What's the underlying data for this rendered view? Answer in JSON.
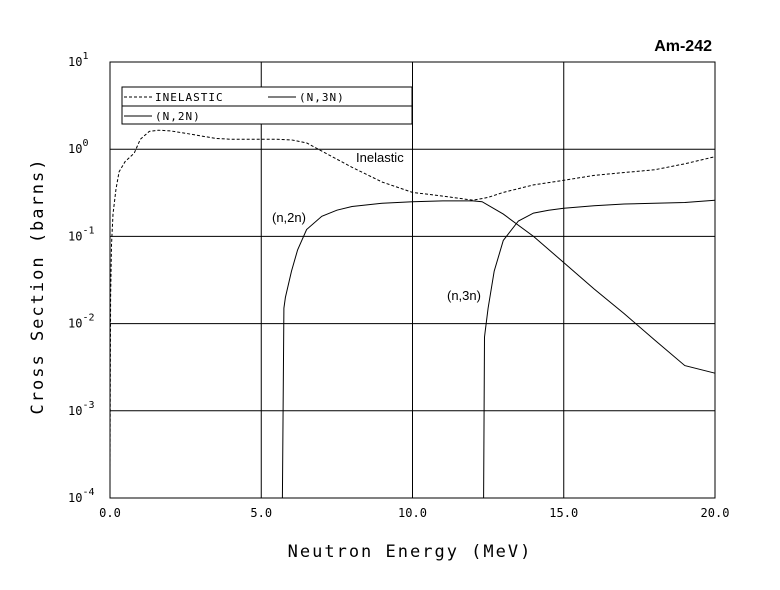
{
  "chart_data": {
    "type": "line",
    "title": "Am-242",
    "xlabel": "Neutron Energy (MeV)",
    "ylabel": "Cross Section (barns)",
    "xlim": [
      0,
      20
    ],
    "ylim": [
      0.0001,
      10
    ],
    "yscale": "log",
    "grid": true,
    "legend_position": "top-left",
    "x_ticks": [
      "0.0",
      "5.0",
      "10.0",
      "15.0",
      "20.0"
    ],
    "y_ticks": [
      {
        "base": "10",
        "exp": "1"
      },
      {
        "base": "10",
        "exp": "0"
      },
      {
        "base": "10",
        "exp": "-1"
      },
      {
        "base": "10",
        "exp": "-2"
      },
      {
        "base": "10",
        "exp": "-3"
      },
      {
        "base": "10",
        "exp": "-4"
      }
    ],
    "legend": [
      {
        "label": "INELASTIC",
        "style": "dashed"
      },
      {
        "label": "(N,3N)",
        "style": "solid"
      },
      {
        "label": "(N,2N)",
        "style": "solid"
      }
    ],
    "annotations": [
      "Inelastic",
      "(n,2n)",
      "(n,3n)"
    ],
    "series": [
      {
        "name": "INELASTIC",
        "style": "dashed",
        "color": "#000000",
        "x": [
          0.0,
          0.02,
          0.05,
          0.1,
          0.2,
          0.3,
          0.5,
          0.8,
          1.0,
          1.3,
          1.6,
          2.0,
          2.5,
          3.0,
          3.5,
          4.0,
          4.5,
          5.0,
          5.5,
          6.0,
          6.5,
          7.0,
          8.0,
          9.0,
          10.0,
          11.0,
          12.0,
          12.5,
          13.0,
          14.0,
          15.0,
          16.0,
          17.0,
          18.0,
          19.0,
          20.0
        ],
        "y": [
          0.0002,
          0.02,
          0.08,
          0.18,
          0.35,
          0.55,
          0.72,
          0.9,
          1.3,
          1.6,
          1.65,
          1.62,
          1.52,
          1.42,
          1.33,
          1.3,
          1.3,
          1.3,
          1.3,
          1.28,
          1.18,
          0.95,
          0.62,
          0.42,
          0.32,
          0.29,
          0.26,
          0.28,
          0.32,
          0.39,
          0.44,
          0.5,
          0.54,
          0.58,
          0.68,
          0.82
        ]
      },
      {
        "name": "(N,2N)",
        "style": "solid",
        "color": "#000000",
        "x": [
          5.7,
          5.75,
          5.8,
          6.0,
          6.2,
          6.5,
          7.0,
          7.5,
          8.0,
          9.0,
          10.0,
          11.0,
          12.0,
          12.3,
          13.0,
          14.0,
          15.0,
          16.0,
          17.0,
          18.0,
          19.0,
          20.0
        ],
        "y": [
          0.0001,
          0.015,
          0.02,
          0.04,
          0.07,
          0.12,
          0.17,
          0.2,
          0.22,
          0.24,
          0.25,
          0.255,
          0.255,
          0.25,
          0.18,
          0.1,
          0.05,
          0.025,
          0.013,
          0.0065,
          0.0033,
          0.0027
        ]
      },
      {
        "name": "(N,3N)",
        "style": "solid",
        "color": "#000000",
        "x": [
          12.35,
          12.38,
          12.4,
          12.5,
          12.7,
          13.0,
          13.5,
          14.0,
          14.5,
          15.0,
          16.0,
          17.0,
          18.0,
          19.0,
          20.0
        ],
        "y": [
          0.0001,
          0.007,
          0.008,
          0.015,
          0.04,
          0.09,
          0.15,
          0.185,
          0.2,
          0.21,
          0.225,
          0.235,
          0.24,
          0.245,
          0.26
        ]
      }
    ]
  }
}
